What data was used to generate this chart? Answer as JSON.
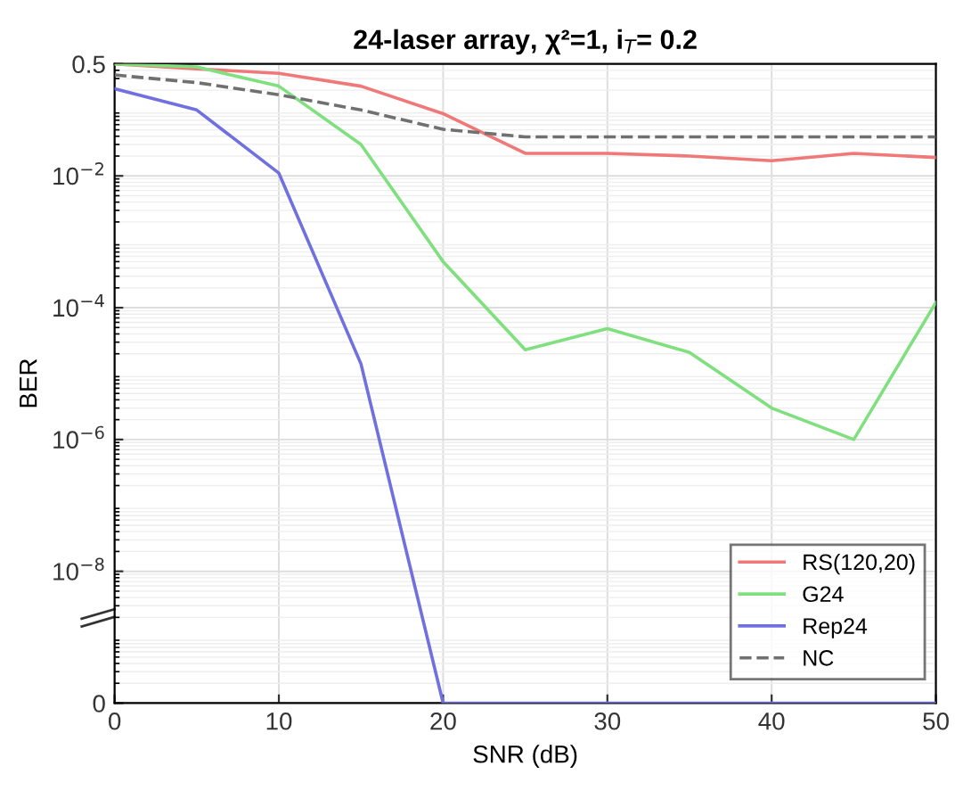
{
  "chart_data": {
    "type": "line",
    "title": "24-laser array, χ²=1, i$_{T}$= 0.2",
    "xlabel": "SNR (dB)",
    "ylabel": "BER",
    "x": [
      0,
      5,
      10,
      15,
      20,
      25,
      30,
      35,
      40,
      45,
      50
    ],
    "series": [
      {
        "name": "RS(120,20)",
        "color": "#f07878",
        "values": [
          0.5,
          0.42,
          0.36,
          0.23,
          0.088,
          0.022,
          0.022,
          0.02,
          0.017,
          0.022,
          0.019
        ]
      },
      {
        "name": "G24",
        "color": "#80e080",
        "values": [
          0.5,
          0.45,
          0.23,
          0.03,
          0.0005,
          2.3e-05,
          4.8e-05,
          2.1e-05,
          3e-06,
          1e-06,
          0.00012
        ]
      },
      {
        "name": "Rep24",
        "color": "#7070e0",
        "values": [
          0.21,
          0.1,
          0.011,
          1.4e-05,
          1e-10,
          1e-10,
          1e-10,
          1e-10,
          1e-10,
          1e-10,
          1e-10
        ]
      },
      {
        "name": "NC",
        "color": "#707070",
        "line_style": "dashed",
        "values": [
          0.34,
          0.26,
          0.17,
          0.1,
          0.051,
          0.039,
          0.039,
          0.039,
          0.039,
          0.039,
          0.039
        ]
      }
    ],
    "log": "y",
    "xlim": [
      0,
      50
    ],
    "xticks": [
      0,
      10,
      20,
      30,
      40,
      50
    ],
    "ylim": [
      1e-10,
      0.5
    ],
    "yticks": [
      {
        "value": 1e-10,
        "label": "0"
      },
      {
        "value": 1e-08,
        "label": "10$^{−8}$"
      },
      {
        "value": 1e-06,
        "label": "10$^{−6}$"
      },
      {
        "value": 0.0001,
        "label": "10$^{−4}$"
      },
      {
        "value": 0.01,
        "label": "10$^{−2}$"
      },
      0.5
    ],
    "grid": true,
    "legend": "bottom right",
    "line_style": "solid",
    "marker": "none"
  }
}
